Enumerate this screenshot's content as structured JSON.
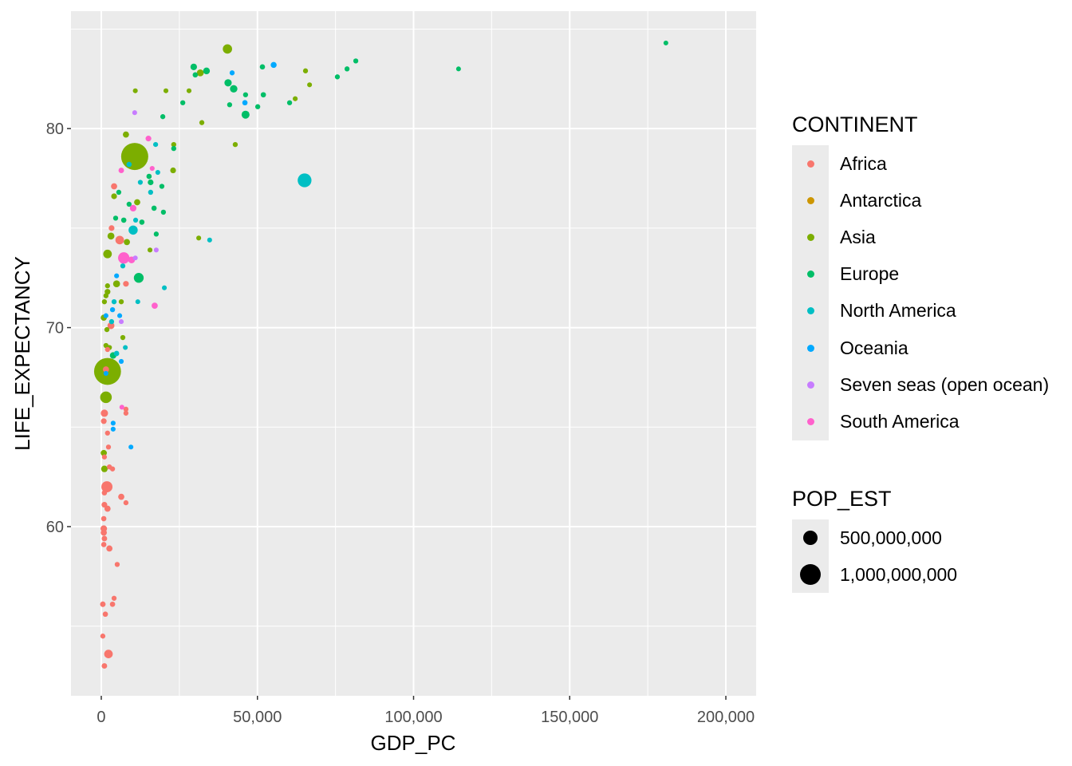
{
  "chart_data": {
    "type": "scatter",
    "xlabel": "GDP_PC",
    "ylabel": "LIFE_EXPECTANCY",
    "xlim": [
      -9700,
      209700
    ],
    "ylim": [
      51.5,
      85.9
    ],
    "x_ticks": [
      0,
      50000,
      100000,
      150000,
      200000
    ],
    "x_tick_labels": [
      "0",
      "50,000",
      "100,000",
      "150,000",
      "200,000"
    ],
    "y_ticks": [
      60,
      70,
      80
    ],
    "y_tick_labels": [
      "60",
      "70",
      "80"
    ],
    "grid": true,
    "legend_placement": "right",
    "color_legend": {
      "title": "CONTINENT",
      "entries": [
        "Africa",
        "Antarctica",
        "Asia",
        "Europe",
        "North America",
        "Oceania",
        "Seven seas (open ocean)",
        "South America"
      ],
      "colors": [
        "#F8766D",
        "#CD9600",
        "#7CAE00",
        "#00BE67",
        "#00BFC4",
        "#00A9FF",
        "#C77CFF",
        "#FF61CC"
      ]
    },
    "size_legend": {
      "title": "POP_EST",
      "values": [
        500000000,
        1000000000
      ],
      "labels": [
        "500,000,000",
        "1,000,000,000"
      ]
    },
    "fields": [
      "gdp_pc",
      "life_expectancy",
      "continent",
      "pop_est_millions"
    ],
    "points": [
      [
        180800,
        84.3,
        "Europe",
        0.04
      ],
      [
        114400,
        83.0,
        "Europe",
        0.6
      ],
      [
        81500,
        83.4,
        "Europe",
        5
      ],
      [
        78700,
        83.0,
        "Europe",
        5
      ],
      [
        75600,
        82.6,
        "Europe",
        5
      ],
      [
        66700,
        82.2,
        "Asia",
        1
      ],
      [
        65400,
        82.9,
        "Asia",
        5
      ],
      [
        62100,
        81.5,
        "Asia",
        3
      ],
      [
        60300,
        81.3,
        "Europe",
        5
      ],
      [
        55200,
        83.2,
        "Oceania",
        25
      ],
      [
        51600,
        83.1,
        "Europe",
        10
      ],
      [
        51900,
        81.7,
        "Europe",
        10
      ],
      [
        50100,
        81.1,
        "Europe",
        5
      ],
      [
        46200,
        81.7,
        "Europe",
        5
      ],
      [
        46000,
        81.3,
        "Oceania",
        10
      ],
      [
        46200,
        80.7,
        "Europe",
        80
      ],
      [
        41900,
        82.8,
        "Oceania",
        5
      ],
      [
        40400,
        84.0,
        "Asia",
        125
      ],
      [
        40600,
        82.3,
        "Europe",
        60
      ],
      [
        42400,
        82.0,
        "Europe",
        65
      ],
      [
        41100,
        81.2,
        "Europe",
        5
      ],
      [
        42900,
        79.2,
        "Asia",
        5
      ],
      [
        29600,
        83.1,
        "Europe",
        40
      ],
      [
        30100,
        82.7,
        "Europe",
        10
      ],
      [
        31700,
        82.8,
        "Asia",
        50
      ],
      [
        33700,
        82.9,
        "Europe",
        45
      ],
      [
        28100,
        81.9,
        "Asia",
        2
      ],
      [
        32200,
        80.3,
        "Asia",
        5
      ],
      [
        26100,
        81.3,
        "Europe",
        5
      ],
      [
        20700,
        81.9,
        "Asia",
        2
      ],
      [
        19700,
        80.6,
        "Europe",
        5
      ],
      [
        10900,
        81.9,
        "Asia",
        2
      ],
      [
        10700,
        80.8,
        "Seven seas (open ocean)",
        1
      ],
      [
        23200,
        79.2,
        "Asia",
        5
      ],
      [
        23200,
        79.0,
        "Europe",
        5
      ],
      [
        23000,
        77.9,
        "Asia",
        20
      ],
      [
        15100,
        79.5,
        "South America",
        20
      ],
      [
        17400,
        79.2,
        "North America",
        3
      ],
      [
        7900,
        79.7,
        "Asia",
        30
      ],
      [
        10700,
        78.6,
        "Asia",
        1400
      ],
      [
        8900,
        78.2,
        "North America",
        10
      ],
      [
        6400,
        77.9,
        "South America",
        15
      ],
      [
        16300,
        78.0,
        "South America",
        3
      ],
      [
        18100,
        77.8,
        "North America",
        2
      ],
      [
        15300,
        77.6,
        "Europe",
        10
      ],
      [
        15800,
        77.3,
        "Europe",
        20
      ],
      [
        12500,
        77.3,
        "North America",
        3
      ],
      [
        15800,
        76.8,
        "North America",
        5
      ],
      [
        19400,
        77.1,
        "Europe",
        5
      ],
      [
        4100,
        77.1,
        "Africa",
        30
      ],
      [
        5600,
        76.8,
        "Europe",
        5
      ],
      [
        4100,
        76.6,
        "Asia",
        20
      ],
      [
        11500,
        76.3,
        "Asia",
        30
      ],
      [
        8900,
        76.2,
        "Europe",
        5
      ],
      [
        10200,
        76.0,
        "South America",
        40
      ],
      [
        16900,
        76.0,
        "Europe",
        10
      ],
      [
        19900,
        75.8,
        "Europe",
        5
      ],
      [
        4600,
        75.5,
        "Europe",
        5
      ],
      [
        7200,
        75.4,
        "Europe",
        10
      ],
      [
        11000,
        75.4,
        "North America",
        3
      ],
      [
        13000,
        75.3,
        "Europe",
        10
      ],
      [
        10200,
        74.9,
        "North America",
        120
      ],
      [
        17600,
        74.7,
        "Europe",
        5
      ],
      [
        31200,
        74.5,
        "Asia",
        2
      ],
      [
        34700,
        74.4,
        "North America",
        1
      ],
      [
        3300,
        75.0,
        "Africa",
        20
      ],
      [
        3100,
        74.6,
        "Asia",
        50
      ],
      [
        5900,
        74.4,
        "Africa",
        100
      ],
      [
        8200,
        74.3,
        "Asia",
        30
      ],
      [
        2000,
        73.7,
        "Asia",
        100
      ],
      [
        7200,
        73.5,
        "South America",
        210
      ],
      [
        9700,
        73.4,
        "South America",
        45
      ],
      [
        10900,
        73.5,
        "Seven seas (open ocean)",
        1
      ],
      [
        6900,
        73.1,
        "North America",
        5
      ],
      [
        15600,
        73.9,
        "Asia",
        3
      ],
      [
        17600,
        73.9,
        "Seven seas (open ocean)",
        1
      ],
      [
        12000,
        72.5,
        "Europe",
        145
      ],
      [
        4900,
        72.6,
        "Oceania",
        2
      ],
      [
        7900,
        72.2,
        "Africa",
        20
      ],
      [
        2000,
        72.1,
        "Asia",
        5
      ],
      [
        4900,
        72.2,
        "Asia",
        50
      ],
      [
        1500,
        71.6,
        "Asia",
        5
      ],
      [
        2000,
        71.8,
        "Asia",
        20
      ],
      [
        1000,
        71.3,
        "Asia",
        5
      ],
      [
        6400,
        71.3,
        "Asia",
        5
      ],
      [
        4100,
        71.3,
        "North America",
        5
      ],
      [
        11700,
        71.3,
        "North America",
        1
      ],
      [
        20200,
        72.0,
        "North America",
        1
      ],
      [
        17100,
        71.1,
        "South America",
        30
      ],
      [
        3600,
        70.9,
        "Oceania",
        5
      ],
      [
        1500,
        70.6,
        "Oceania",
        2
      ],
      [
        800,
        70.5,
        "Asia",
        30
      ],
      [
        5900,
        70.6,
        "Oceania",
        2
      ],
      [
        3300,
        70.3,
        "North America",
        5
      ],
      [
        6400,
        70.3,
        "Seven seas (open ocean)",
        1
      ],
      [
        3100,
        70.1,
        "Africa",
        50
      ],
      [
        1800,
        69.9,
        "Asia",
        5
      ],
      [
        6900,
        69.5,
        "Asia",
        5
      ],
      [
        1500,
        69.1,
        "Asia",
        5
      ],
      [
        2600,
        69.0,
        "Asia",
        5
      ],
      [
        7700,
        69.0,
        "North America",
        1
      ],
      [
        2000,
        68.9,
        "Africa",
        5
      ],
      [
        3800,
        68.6,
        "Europe",
        40
      ],
      [
        4900,
        68.7,
        "North America",
        10
      ],
      [
        6400,
        68.3,
        "Oceania",
        2
      ],
      [
        2000,
        67.8,
        "Asia",
        1380
      ],
      [
        1500,
        67.9,
        "Africa",
        30
      ],
      [
        1500,
        67.7,
        "Oceania",
        2
      ],
      [
        1500,
        66.5,
        "Asia",
        220
      ],
      [
        6600,
        66.0,
        "South America",
        2
      ],
      [
        7900,
        65.9,
        "Africa",
        5
      ],
      [
        7900,
        65.7,
        "Africa",
        5
      ],
      [
        1000,
        65.7,
        "Africa",
        60
      ],
      [
        800,
        65.3,
        "Africa",
        20
      ],
      [
        3800,
        65.2,
        "Oceania",
        2
      ],
      [
        3800,
        64.9,
        "Oceania",
        2
      ],
      [
        2000,
        64.7,
        "Africa",
        5
      ],
      [
        9500,
        64.0,
        "Oceania",
        1
      ],
      [
        2300,
        64.0,
        "Africa",
        5
      ],
      [
        800,
        63.7,
        "Asia",
        30
      ],
      [
        1000,
        63.5,
        "Africa",
        5
      ],
      [
        2600,
        63.0,
        "Africa",
        5
      ],
      [
        1000,
        62.9,
        "Asia",
        40
      ],
      [
        3600,
        62.9,
        "Africa",
        5
      ],
      [
        1800,
        62.0,
        "Africa",
        200
      ],
      [
        1000,
        61.7,
        "Africa",
        10
      ],
      [
        6400,
        61.5,
        "Africa",
        30
      ],
      [
        7900,
        61.2,
        "Africa",
        5
      ],
      [
        1000,
        61.1,
        "Africa",
        20
      ],
      [
        2000,
        60.9,
        "Africa",
        30
      ],
      [
        800,
        60.4,
        "Africa",
        10
      ],
      [
        800,
        59.9,
        "Africa",
        40
      ],
      [
        800,
        59.7,
        "Africa",
        30
      ],
      [
        1000,
        59.4,
        "Africa",
        15
      ],
      [
        800,
        59.1,
        "Africa",
        10
      ],
      [
        2600,
        58.9,
        "Africa",
        30
      ],
      [
        5100,
        58.1,
        "Africa",
        5
      ],
      [
        4100,
        56.4,
        "Africa",
        5
      ],
      [
        3600,
        56.1,
        "Africa",
        10
      ],
      [
        500,
        56.1,
        "Africa",
        15
      ],
      [
        1300,
        55.6,
        "Africa",
        10
      ],
      [
        500,
        54.5,
        "Africa",
        5
      ],
      [
        2300,
        53.6,
        "Africa",
        100
      ],
      [
        1000,
        53.0,
        "Africa",
        15
      ],
      [
        65100,
        77.4,
        "North America",
        330
      ]
    ]
  }
}
